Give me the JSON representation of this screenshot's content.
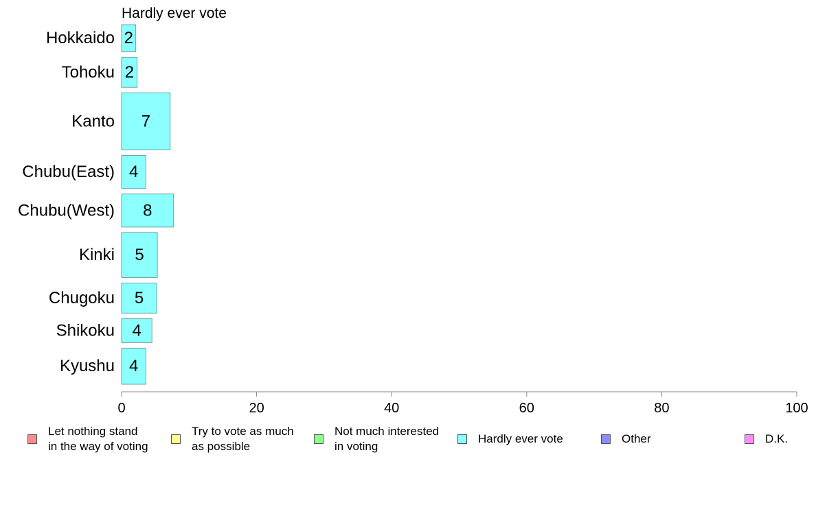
{
  "chart_data": {
    "type": "bar",
    "orientation": "horizontal",
    "panel_title": "Hardly ever vote",
    "categories": [
      "Hokkaido",
      "Tohoku",
      "Kanto",
      "Chubu(East)",
      "Chubu(West)",
      "Kinki",
      "Chugoku",
      "Shikoku",
      "Kyushu"
    ],
    "values": [
      2,
      2,
      7,
      4,
      8,
      5,
      5,
      4,
      4
    ],
    "bar_display_values": [
      2.1,
      2.3,
      7.2,
      3.6,
      7.7,
      5.3,
      5.2,
      4.5,
      3.6
    ],
    "relative_weights": [
      0.9,
      1.0,
      1.9,
      1.1,
      1.1,
      1.5,
      1.0,
      0.8,
      1.2
    ],
    "xlim": [
      0,
      100
    ],
    "xticks": [
      0,
      20,
      40,
      60,
      80,
      100
    ],
    "bar_color": "#8cffff",
    "bar_stroke": "#6aa6a6",
    "axis_color": "#888888",
    "grid": false,
    "legend_position": "bottom",
    "legend": [
      {
        "label": "Let nothing stand\nin the way of voting",
        "color": "#ff8c8c"
      },
      {
        "label": "Try to vote as much\nas possible",
        "color": "#ffff8c"
      },
      {
        "label": "Not much interested\nin voting",
        "color": "#8cff8c"
      },
      {
        "label": "Hardly ever vote",
        "color": "#8cffff"
      },
      {
        "label": "Other",
        "color": "#8c8cff"
      },
      {
        "label": "D.K.",
        "color": "#ff8cff"
      }
    ]
  }
}
